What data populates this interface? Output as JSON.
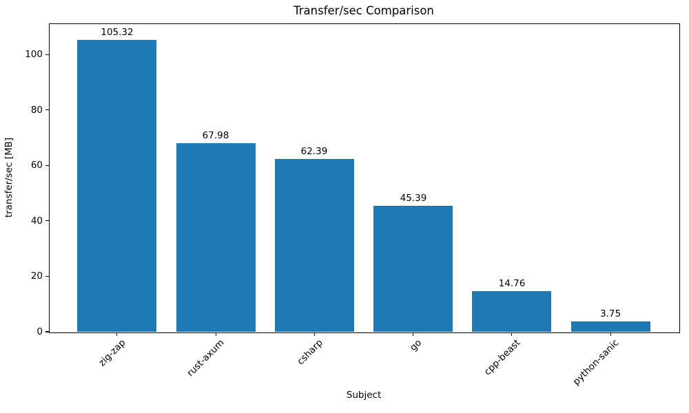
{
  "chart_data": {
    "type": "bar",
    "title": "Transfer/sec Comparison",
    "xlabel": "Subject",
    "ylabel": "transfer/sec [MB]",
    "categories": [
      "zig-zap",
      "rust-axum",
      "csharp",
      "go",
      "cpp-beast",
      "python-sanic"
    ],
    "values": [
      105.32,
      67.98,
      62.39,
      45.39,
      14.76,
      3.75
    ],
    "value_labels": [
      "105.32",
      "67.98",
      "62.39",
      "45.39",
      "14.76",
      "3.75"
    ],
    "yticks": [
      0,
      20,
      40,
      60,
      80,
      100
    ],
    "ylim": [
      0,
      111.2
    ],
    "bar_color": "#1f77b4",
    "axis_color": "#000000",
    "background_color": "#ffffff",
    "grid": false,
    "legend": null,
    "xtick_rotation_deg": 45
  }
}
